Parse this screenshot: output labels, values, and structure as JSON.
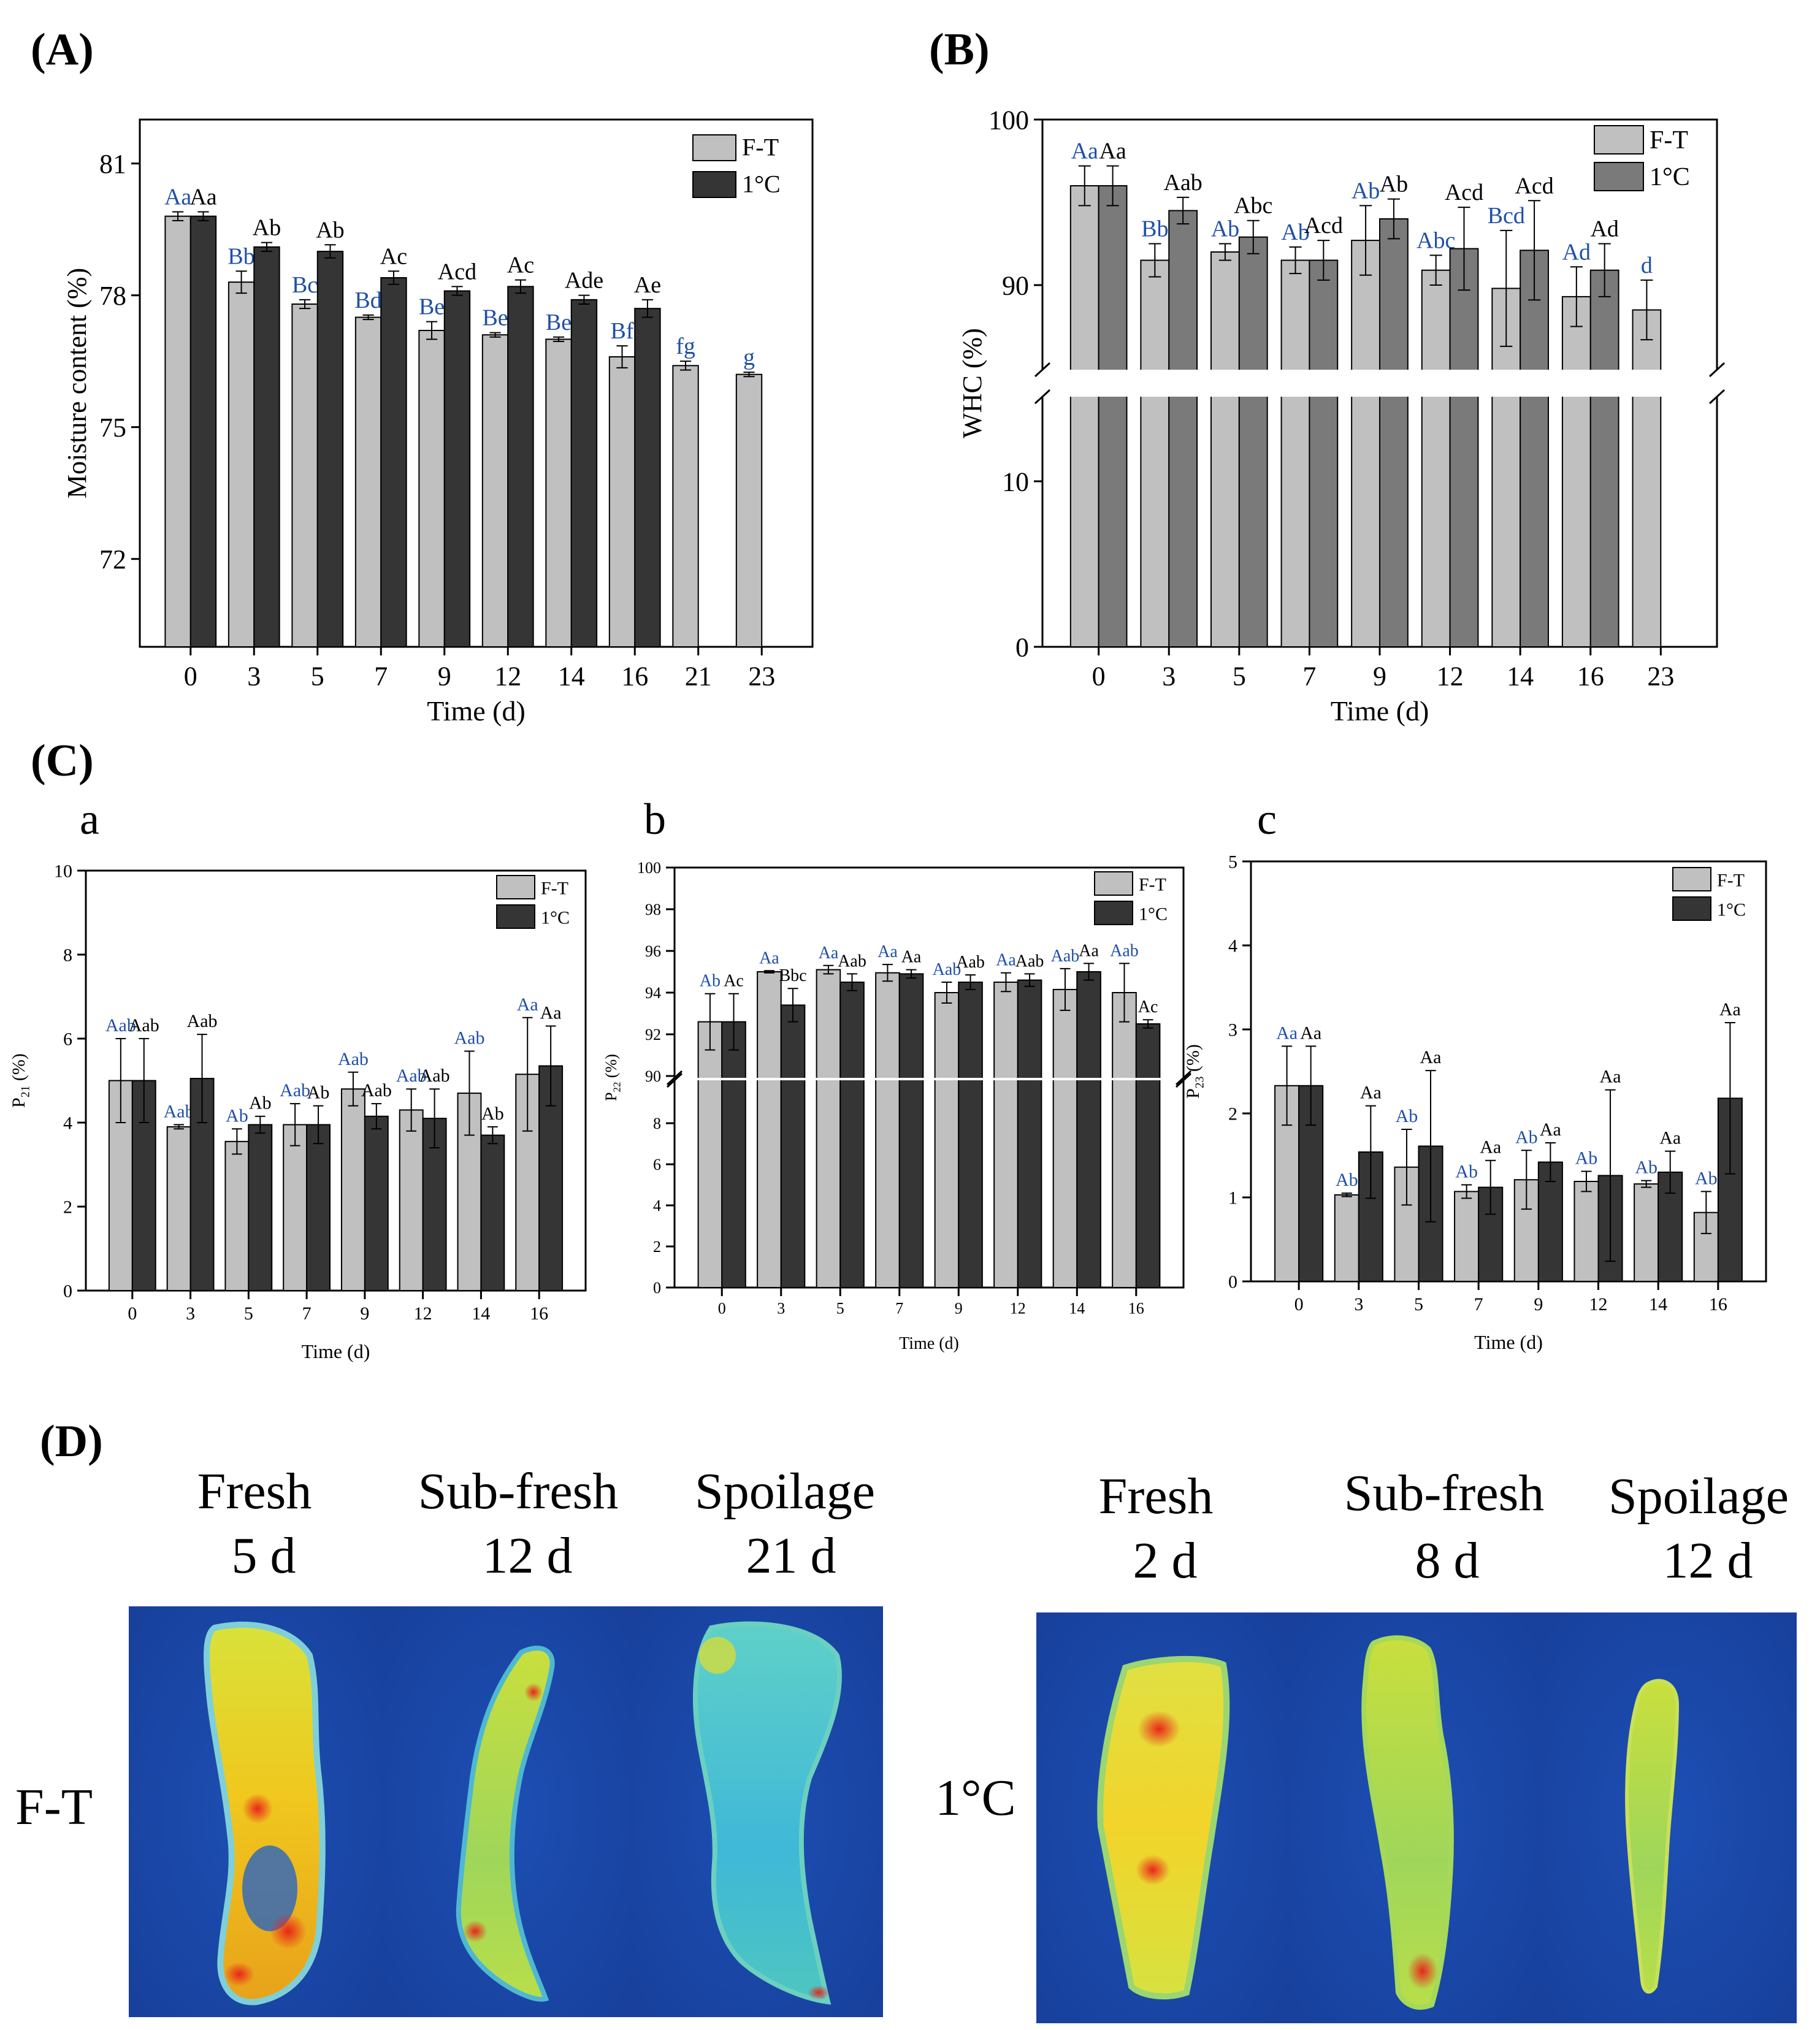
{
  "colors": {
    "ft_bar": "#c0c0c0",
    "c1_bar_dark": "#353535",
    "c1_bar_gray": "#7a7a7a",
    "blue_label": "#1f4fa8",
    "black_label": "#000000"
  },
  "chart_data": [
    {
      "id": "A",
      "panel_label": "(A)",
      "type": "bar",
      "ylabel": "Moisture content  (%)",
      "xlabel": "Time (d)",
      "ylim": [
        70,
        82
      ],
      "yticks": [
        72,
        75,
        78,
        81
      ],
      "legend": [
        "F-T",
        "1°C"
      ],
      "categories": [
        "0",
        "3",
        "5",
        "7",
        "9",
        "12",
        "14",
        "16",
        "21",
        "23"
      ],
      "series": [
        {
          "name": "F-T",
          "values": [
            79.8,
            78.3,
            77.8,
            77.5,
            77.2,
            77.1,
            77.0,
            76.6,
            76.4,
            76.2
          ],
          "errors": [
            0.1,
            0.25,
            0.1,
            0.05,
            0.2,
            0.05,
            0.05,
            0.25,
            0.1,
            0.05
          ],
          "letters": [
            "Aa",
            "Bb",
            "Bc",
            "Bd",
            "Be",
            "Be",
            "Be",
            "Bf",
            "fg",
            "g"
          ]
        },
        {
          "name": "1°C",
          "values": [
            79.8,
            79.1,
            79.0,
            78.4,
            78.1,
            78.2,
            77.9,
            77.7,
            null,
            null
          ],
          "errors": [
            0.1,
            0.1,
            0.15,
            0.15,
            0.1,
            0.15,
            0.1,
            0.2,
            null,
            null
          ],
          "letters": [
            "Aa",
            "Ab",
            "Ab",
            "Ac",
            "Acd",
            "Ac",
            "Ade",
            "Ae",
            "",
            ""
          ]
        }
      ]
    },
    {
      "id": "B",
      "panel_label": "(B)",
      "type": "bar",
      "ylabel": "WHC (%)",
      "xlabel": "Time (d)",
      "broken_axis": true,
      "lower_range": [
        0,
        15
      ],
      "lower_ticks": [
        0,
        10
      ],
      "upper_range": [
        85,
        100
      ],
      "upper_ticks": [
        90,
        100
      ],
      "legend": [
        "F-T",
        "1°C"
      ],
      "categories": [
        "0",
        "3",
        "5",
        "7",
        "9",
        "12",
        "14",
        "16",
        "23"
      ],
      "series": [
        {
          "name": "F-T",
          "values": [
            96.0,
            91.5,
            92.0,
            91.5,
            92.7,
            90.9,
            89.8,
            89.3,
            88.5
          ],
          "errors": [
            1.2,
            1.0,
            0.5,
            0.8,
            2.1,
            0.9,
            3.5,
            1.8,
            1.8
          ],
          "letters": [
            "Aa",
            "Bb",
            "Ab",
            "Ab",
            "Ab",
            "Abc",
            "Bcd",
            "Ad",
            "d"
          ]
        },
        {
          "name": "1°C",
          "values": [
            96.0,
            94.5,
            92.9,
            91.5,
            94.0,
            92.2,
            92.1,
            90.9,
            null
          ],
          "errors": [
            1.2,
            0.8,
            1.0,
            1.2,
            1.2,
            2.5,
            3.0,
            1.6,
            null
          ],
          "letters": [
            "Aa",
            "Aab",
            "Abc",
            "Acd",
            "Ab",
            "Acd",
            "Acd",
            "Ad",
            ""
          ]
        }
      ]
    },
    {
      "id": "Ca",
      "type": "bar",
      "ylabel_main": "P",
      "ylabel_sub": "21",
      "ylabel_tail": " (%)",
      "xlabel": "Time (d)",
      "ylim": [
        0,
        10
      ],
      "yticks": [
        0,
        2,
        4,
        6,
        8,
        10
      ],
      "legend": [
        "F-T",
        "1°C"
      ],
      "categories": [
        "0",
        "3",
        "5",
        "7",
        "9",
        "12",
        "14",
        "16"
      ],
      "series": [
        {
          "name": "F-T",
          "values": [
            5.0,
            3.9,
            3.55,
            3.95,
            4.8,
            4.3,
            4.7,
            5.15
          ],
          "errors": [
            1.0,
            0.05,
            0.3,
            0.5,
            0.4,
            0.5,
            1.0,
            1.35
          ],
          "letters": [
            "Aab",
            "Aab",
            "Ab",
            "Aab",
            "Aab",
            "Aab",
            "Aab",
            "Aa"
          ]
        },
        {
          "name": "1°C",
          "values": [
            5.0,
            5.05,
            3.95,
            3.95,
            4.15,
            4.1,
            3.7,
            5.35
          ],
          "errors": [
            1.0,
            1.05,
            0.2,
            0.45,
            0.3,
            0.7,
            0.2,
            0.95
          ],
          "letters": [
            "Aab",
            "Aab",
            "Ab",
            "Ab",
            "Aab",
            "Aab",
            "Ab",
            "Aa"
          ]
        }
      ]
    },
    {
      "id": "Cb",
      "type": "bar",
      "ylabel_main": "P",
      "ylabel_sub": "22",
      "ylabel_tail": " (%)",
      "xlabel": "Time (d)",
      "broken_axis": true,
      "lower_range": [
        0,
        10
      ],
      "lower_ticks": [
        0,
        2,
        4,
        6,
        8
      ],
      "upper_range": [
        90,
        100
      ],
      "upper_ticks": [
        90,
        92,
        94,
        96,
        98,
        100
      ],
      "legend": [
        "F-T",
        "1°C"
      ],
      "categories": [
        "0",
        "3",
        "5",
        "7",
        "9",
        "12",
        "14",
        "16"
      ],
      "series": [
        {
          "name": "F-T",
          "values": [
            92.6,
            95.0,
            95.1,
            94.95,
            94.0,
            94.5,
            94.15,
            94.0
          ],
          "errors": [
            1.35,
            0.05,
            0.2,
            0.4,
            0.5,
            0.45,
            1.0,
            1.4
          ],
          "letters": [
            "Ab",
            "Aa",
            "Aa",
            "Aa",
            "Aab",
            "Aa",
            "Aab",
            "Aab"
          ]
        },
        {
          "name": "1°C",
          "values": [
            92.6,
            93.4,
            94.5,
            94.9,
            94.5,
            94.6,
            95.0,
            92.5
          ],
          "errors": [
            1.35,
            0.8,
            0.4,
            0.2,
            0.35,
            0.3,
            0.4,
            0.2
          ],
          "letters": [
            "Ac",
            "Bbc",
            "Aab",
            "Aa",
            "Aab",
            "Aab",
            "Aa",
            "Ac"
          ]
        }
      ]
    },
    {
      "id": "Cc",
      "type": "bar",
      "ylabel_main": "P",
      "ylabel_sub": "23",
      "ylabel_tail": " (%)",
      "xlabel": "Time (d)",
      "ylim": [
        0,
        5
      ],
      "yticks": [
        0,
        1,
        2,
        3,
        4,
        5
      ],
      "legend": [
        "F-T",
        "1°C"
      ],
      "categories": [
        "0",
        "3",
        "5",
        "7",
        "9",
        "12",
        "14",
        "16"
      ],
      "series": [
        {
          "name": "F-T",
          "values": [
            2.33,
            1.03,
            1.36,
            1.07,
            1.21,
            1.19,
            1.16,
            0.82
          ],
          "errors": [
            0.47,
            0.02,
            0.45,
            0.08,
            0.35,
            0.12,
            0.04,
            0.25
          ],
          "letters": [
            "Aa",
            "Ab",
            "Ab",
            "Ab",
            "Ab",
            "Ab",
            "Ab",
            "Ab"
          ]
        },
        {
          "name": "1°C",
          "values": [
            2.33,
            1.54,
            1.61,
            1.12,
            1.42,
            1.26,
            1.3,
            2.18
          ],
          "errors": [
            0.47,
            0.55,
            0.9,
            0.32,
            0.23,
            1.02,
            0.25,
            0.9
          ],
          "letters": [
            "Aa",
            "Aa",
            "Aa",
            "Aa",
            "Aa",
            "Aa",
            "Aa",
            "Aa"
          ]
        }
      ]
    }
  ],
  "labels": {
    "panel_c": "(C)",
    "sub_a": "a",
    "sub_b": "b",
    "sub_c": "c",
    "panel_d": "(D)",
    "row_ft": "F-T",
    "row_1c": "1°C"
  },
  "mri": {
    "ft": [
      {
        "stage": "Fresh",
        "day": "5 d"
      },
      {
        "stage": "Sub-fresh",
        "day": "12 d"
      },
      {
        "stage": "Spoilage",
        "day": "21 d"
      }
    ],
    "c1": [
      {
        "stage": "Fresh",
        "day": "2 d"
      },
      {
        "stage": "Sub-fresh",
        "day": "8 d"
      },
      {
        "stage": "Spoilage",
        "day": "12 d"
      }
    ]
  }
}
